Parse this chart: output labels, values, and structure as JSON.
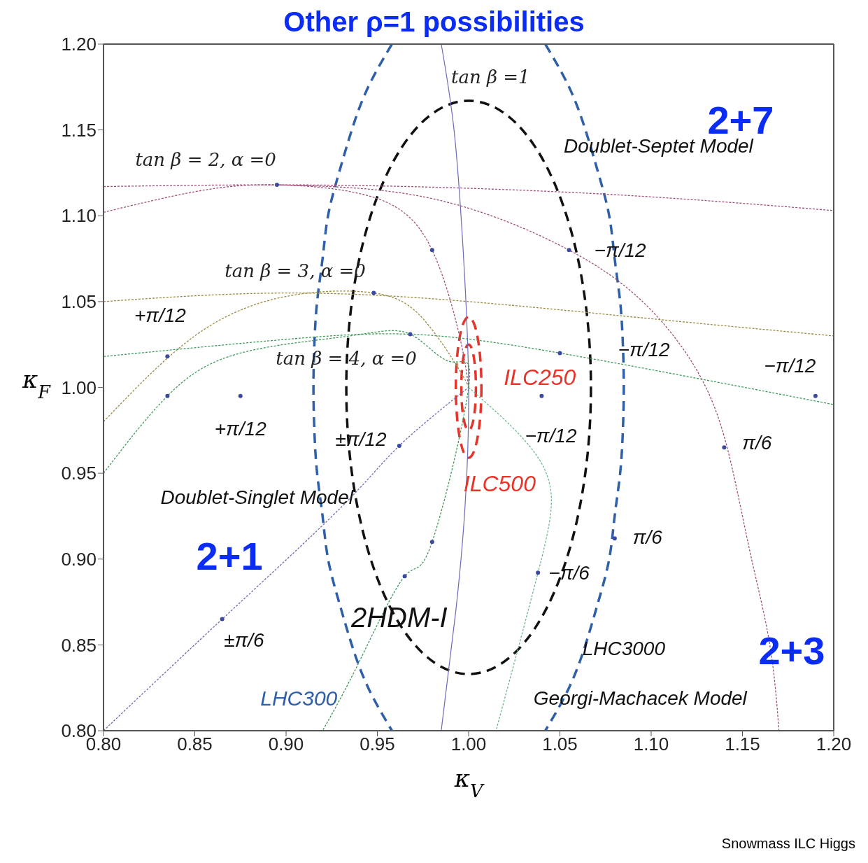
{
  "chart_data": {
    "type": "line",
    "title": "Other ρ=1 possibilities",
    "xlabel": "κ$_{V}$",
    "ylabel": "κ$_{F}$",
    "xlim": [
      0.8,
      1.2
    ],
    "ylim": [
      0.8,
      1.2
    ],
    "xticks": [
      {
        "value": 0.8,
        "label": "0.80"
      },
      {
        "value": 0.85,
        "label": "0.85"
      },
      {
        "value": 0.9,
        "label": "0.90"
      },
      {
        "value": 0.95,
        "label": "0.95"
      },
      {
        "value": 1.0,
        "label": "1.00"
      },
      {
        "value": 1.05,
        "label": "1.05"
      },
      {
        "value": 1.1,
        "label": "1.10"
      },
      {
        "value": 1.15,
        "label": "1.15"
      },
      {
        "value": 1.2,
        "label": "1.20"
      }
    ],
    "yticks": [
      {
        "value": 0.8,
        "label": "0.80"
      },
      {
        "value": 0.85,
        "label": "0.85"
      },
      {
        "value": 0.9,
        "label": "0.90"
      },
      {
        "value": 0.95,
        "label": "0.95"
      },
      {
        "value": 1.0,
        "label": "1.00"
      },
      {
        "value": 1.05,
        "label": "1.05"
      },
      {
        "value": 1.1,
        "label": "1.10"
      },
      {
        "value": 1.15,
        "label": "1.15"
      },
      {
        "value": 1.2,
        "label": "1.20"
      }
    ],
    "grid": false,
    "series": [
      {
        "color": "#2f5fa8",
        "line_style": "dashed",
        "x": [
          0.958,
          0.945,
          0.936,
          0.929,
          0.923,
          0.92,
          0.917,
          0.9155,
          0.915,
          0.9155,
          0.917,
          0.92,
          0.923,
          0.929,
          0.936,
          0.945,
          0.958
        ],
        "values": [
          1.2,
          1.175,
          1.15,
          1.125,
          1.1,
          1.075,
          1.05,
          1.025,
          1.0,
          0.975,
          0.95,
          0.925,
          0.9,
          0.875,
          0.85,
          0.825,
          0.8
        ]
      },
      {
        "color": "#2f5fa8",
        "line_style": "dashed",
        "x": [
          1.042,
          1.055,
          1.064,
          1.071,
          1.077,
          1.08,
          1.083,
          1.0845,
          1.085,
          1.0845,
          1.083,
          1.08,
          1.077,
          1.071,
          1.064,
          1.055,
          1.042
        ],
        "values": [
          1.2,
          1.175,
          1.15,
          1.125,
          1.1,
          1.075,
          1.05,
          1.025,
          1.0,
          0.975,
          0.95,
          0.925,
          0.9,
          0.875,
          0.85,
          0.825,
          0.8
        ]
      },
      {
        "color": "#6a6ab8",
        "line_style": "solid",
        "x": [
          0.985,
          0.992,
          0.997,
          1.0,
          0.998,
          0.993,
          0.985
        ],
        "values": [
          1.2,
          1.15,
          1.08,
          1.0,
          0.93,
          0.87,
          0.8
        ]
      },
      {
        "color": "#a0507a",
        "line_style": "dotted",
        "x": [
          0.8,
          0.9,
          1.0,
          1.1,
          1.2
        ],
        "values": [
          1.117,
          1.118,
          1.116,
          1.111,
          1.103
        ]
      },
      {
        "color": "#a0507a",
        "line_style": "dotted",
        "x": [
          0.8,
          0.85,
          0.895,
          0.95,
          0.98,
          0.995,
          1.0
        ],
        "values": [
          1.102,
          1.114,
          1.118,
          1.11,
          1.08,
          1.03,
          1.0
        ]
      },
      {
        "color": "#a0507a",
        "line_style": "dotted",
        "x": [
          0.895,
          0.98,
          1.055,
          1.1,
          1.13,
          1.145,
          1.155,
          1.165,
          1.17
        ],
        "values": [
          1.118,
          1.11,
          1.08,
          1.045,
          1.0,
          0.95,
          0.9,
          0.85,
          0.8
        ]
      },
      {
        "color": "#9a8a40",
        "line_style": "dotted",
        "x": [
          0.8,
          0.9,
          1.0,
          1.1,
          1.2
        ],
        "values": [
          1.05,
          1.055,
          1.05,
          1.04,
          1.03
        ]
      },
      {
        "color": "#9a8a40",
        "line_style": "dotted",
        "x": [
          0.8,
          0.85,
          0.9,
          0.948,
          0.975,
          0.995,
          1.0
        ],
        "values": [
          0.98,
          1.03,
          1.053,
          1.055,
          1.04,
          1.01,
          1.0
        ]
      },
      {
        "color": "#3f9a5a",
        "line_style": "dotted",
        "x": [
          0.8,
          0.9,
          0.968,
          1.05,
          1.2
        ],
        "values": [
          1.018,
          1.028,
          1.031,
          1.02,
          0.99
        ]
      },
      {
        "color": "#3f9a5a",
        "line_style": "dotted",
        "x": [
          0.8,
          0.835,
          0.875,
          0.935,
          0.968,
          0.99,
          1.0,
          0.98,
          0.965,
          0.94,
          0.92
        ],
        "values": [
          0.95,
          0.995,
          1.02,
          1.03,
          1.031,
          1.015,
          1.0,
          0.91,
          0.89,
          0.84,
          0.8
        ]
      },
      {
        "color": "#6fb88a",
        "line_style": "dotted",
        "x": [
          1.0,
          1.03,
          1.045,
          1.038,
          1.015
        ],
        "values": [
          1.0,
          0.97,
          0.94,
          0.892,
          0.8
        ]
      },
      {
        "color": "#6a6ab8",
        "line_style": "dotted",
        "x": [
          0.8,
          0.865,
          0.93,
          0.962,
          1.0
        ],
        "values": [
          0.8,
          0.865,
          0.93,
          0.966,
          1.0
        ]
      },
      {
        "type": "scatter",
        "color": "#3b4aa0",
        "x": [
          0.895,
          0.98,
          1.055,
          0.948,
          0.968,
          0.835,
          0.835,
          0.875,
          1.05,
          1.04,
          1.19,
          1.14,
          0.962,
          0.98,
          0.965,
          1.038,
          1.08,
          0.865
        ],
        "values": [
          1.118,
          1.08,
          1.08,
          1.055,
          1.031,
          1.018,
          0.995,
          0.995,
          1.02,
          0.995,
          0.995,
          0.965,
          0.966,
          0.91,
          0.89,
          0.892,
          0.912,
          0.865
        ]
      }
    ],
    "annotations": [
      "tan β =1",
      "tan β = 2, α =0",
      "tan β = 3, α =0",
      "tan β = 4, α =0",
      "2+7",
      "Doublet-Septet Model",
      "−π/12",
      "+π/12",
      "−π/12",
      "ILC250",
      "−π/12",
      "+π/12",
      "±π/12",
      "−π/12",
      "π/6",
      "ILC500",
      "Doublet-Singlet Model",
      "2+1",
      "π/6",
      "−π/6",
      "±π/6",
      "2HDM-I",
      "LHC3000",
      "2+3",
      "LHC300",
      "Georgi-Machacek Model",
      "Snowmass ILC Higgs"
    ]
  }
}
